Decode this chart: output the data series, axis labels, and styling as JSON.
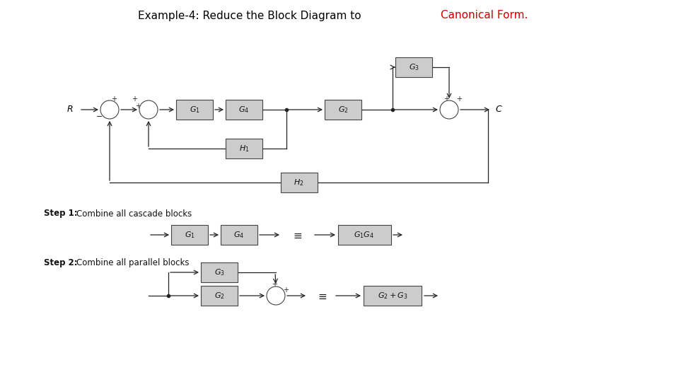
{
  "title_black": "Example-4: Reduce the Block Diagram to ",
  "title_red": "Canonical Form.",
  "bg_color": "#ffffff",
  "block_facecolor": "#cccccc",
  "block_edgecolor": "#444444",
  "line_color": "#222222",
  "text_color": "#111111",
  "step1_label": "Step 1:  ",
  "step1_text": "Combine all cascade blocks",
  "step2_label": "Step 2:  ",
  "step2_text": "Combine all parallel blocks"
}
